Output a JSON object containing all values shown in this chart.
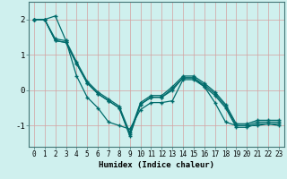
{
  "title": "",
  "xlabel": "Humidex (Indice chaleur)",
  "bg_color": "#cff0ee",
  "grid_color": "#d4a0a0",
  "line_color": "#006b6b",
  "marker": "+",
  "lines": [
    [
      2.0,
      2.0,
      2.1,
      1.4,
      0.4,
      -0.2,
      -0.5,
      -0.9,
      -1.0,
      -1.1,
      -0.55,
      -0.35,
      -0.35,
      -0.3,
      0.3,
      0.3,
      0.1,
      -0.35,
      -0.9,
      -1.0,
      -1.0,
      -1.0,
      -0.95,
      -1.0
    ],
    [
      2.0,
      2.0,
      1.4,
      1.35,
      0.75,
      0.2,
      -0.1,
      -0.3,
      -0.5,
      -1.3,
      -0.4,
      -0.2,
      -0.2,
      0.0,
      0.35,
      0.35,
      0.1,
      -0.15,
      -0.5,
      -1.05,
      -1.05,
      -0.95,
      -0.95,
      -0.95
    ],
    [
      2.0,
      2.0,
      1.4,
      1.35,
      0.75,
      0.2,
      -0.1,
      -0.3,
      -0.5,
      -1.25,
      -0.4,
      -0.2,
      -0.2,
      0.05,
      0.35,
      0.35,
      0.15,
      -0.1,
      -0.45,
      -1.0,
      -1.0,
      -0.9,
      -0.9,
      -0.9
    ],
    [
      2.0,
      2.0,
      1.45,
      1.4,
      0.8,
      0.25,
      -0.05,
      -0.25,
      -0.45,
      -1.2,
      -0.35,
      -0.15,
      -0.15,
      0.1,
      0.4,
      0.4,
      0.2,
      -0.05,
      -0.4,
      -0.95,
      -0.95,
      -0.85,
      -0.85,
      -0.85
    ]
  ],
  "xlim": [
    -0.5,
    23.5
  ],
  "ylim": [
    -1.6,
    2.5
  ],
  "yticks": [
    -1,
    0,
    1,
    2
  ],
  "xticks": [
    0,
    1,
    2,
    3,
    4,
    5,
    6,
    7,
    8,
    9,
    10,
    11,
    12,
    13,
    14,
    15,
    16,
    17,
    18,
    19,
    20,
    21,
    22,
    23
  ],
  "xtick_labels": [
    "0",
    "1",
    "2",
    "3",
    "4",
    "5",
    "6",
    "7",
    "8",
    "9",
    "10",
    "11",
    "12",
    "13",
    "14",
    "15",
    "16",
    "17",
    "18",
    "19",
    "20",
    "21",
    "22",
    "23"
  ],
  "tick_fontsize": 5.5,
  "label_fontsize": 6.5
}
